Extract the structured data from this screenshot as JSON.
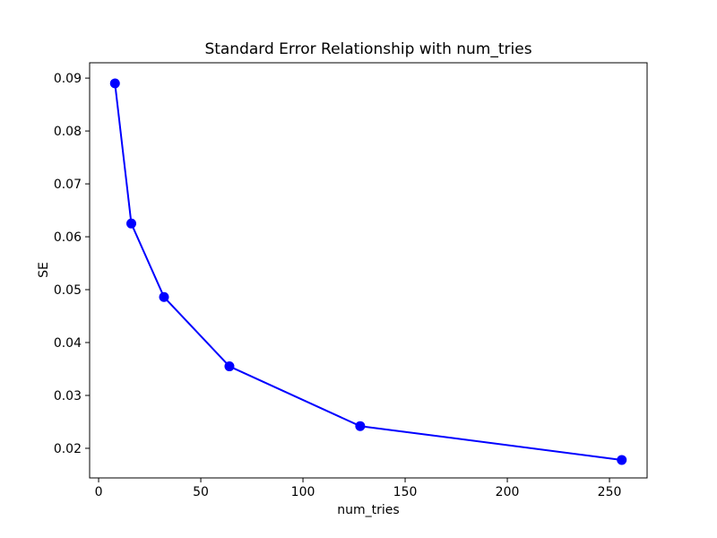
{
  "chart_data": {
    "type": "line",
    "title": "Standard Error Relationship with num_tries",
    "xlabel": "num_tries",
    "ylabel": "SE",
    "series": [
      {
        "name": "SE",
        "x": [
          8,
          16,
          32,
          64,
          128,
          256
        ],
        "y": [
          0.089,
          0.0625,
          0.0486,
          0.0355,
          0.0242,
          0.0178
        ],
        "color": "#0000ff",
        "marker": "circle"
      }
    ],
    "xlim": [
      -4.4,
      268.4
    ],
    "ylim": [
      0.0144,
      0.0929
    ],
    "xticks": [
      0,
      50,
      100,
      150,
      200,
      250
    ],
    "xtick_labels": [
      "0",
      "50",
      "100",
      "150",
      "200",
      "250"
    ],
    "yticks": [
      0.02,
      0.03,
      0.04,
      0.05,
      0.06,
      0.07,
      0.08,
      0.09
    ],
    "ytick_labels": [
      "0.02",
      "0.03",
      "0.04",
      "0.05",
      "0.06",
      "0.07",
      "0.08",
      "0.09"
    ],
    "grid": false,
    "legend": null,
    "colors": {
      "line": "#0000ff",
      "spine": "#000000",
      "text": "#000000",
      "background": "#ffffff"
    }
  }
}
